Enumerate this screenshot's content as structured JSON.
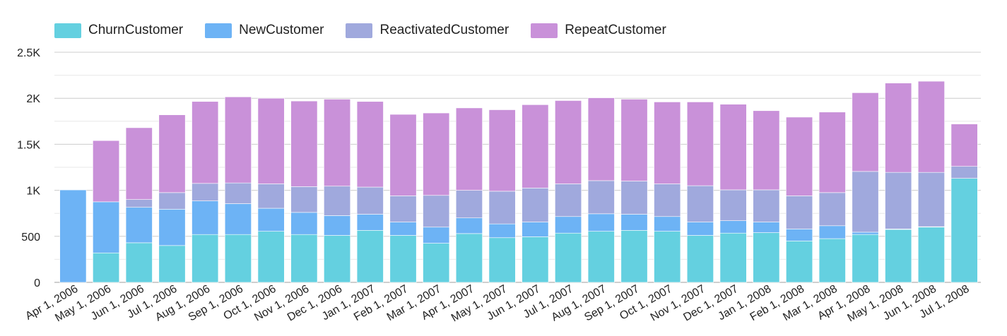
{
  "chart_data": {
    "type": "bar",
    "stacked": true,
    "title": "",
    "xlabel": "",
    "ylabel": "",
    "ylim": [
      0,
      2500
    ],
    "yticks": [
      0,
      500,
      1000,
      1500,
      2000,
      2500
    ],
    "ytick_labels": [
      "0",
      "500",
      "1K",
      "1.5K",
      "2K",
      "2.5K"
    ],
    "grid": true,
    "legend_position": "top-left",
    "categories": [
      "Apr 1, 2006",
      "May 1, 2006",
      "Jun 1, 2006",
      "Jul 1, 2006",
      "Aug 1, 2006",
      "Sep 1, 2006",
      "Oct 1, 2006",
      "Nov 1, 2006",
      "Dec 1, 2006",
      "Jan 1, 2007",
      "Feb 1, 2007",
      "Mar 1, 2007",
      "Apr 1, 2007",
      "May 1, 2007",
      "Jun 1, 2007",
      "Jul 1, 2007",
      "Aug 1, 2007",
      "Sep 1, 2007",
      "Oct 1, 2007",
      "Nov 1, 2007",
      "Dec 1, 2007",
      "Jan 1, 2008",
      "Feb 1, 2008",
      "Mar 1, 2008",
      "Apr 1, 2008",
      "May 1, 2008",
      "Jun 1, 2008",
      "Jul 1, 2008"
    ],
    "series": [
      {
        "name": "ChurnCustomer",
        "color": "#64d0e0",
        "values": [
          0,
          320,
          430,
          400,
          520,
          520,
          555,
          520,
          510,
          565,
          510,
          425,
          530,
          485,
          495,
          535,
          555,
          565,
          555,
          510,
          535,
          540,
          450,
          475,
          520,
          575,
          600,
          1130
        ]
      },
      {
        "name": "NewCustomer",
        "color": "#6db3f5",
        "values": [
          1005,
          555,
          385,
          395,
          365,
          335,
          250,
          240,
          215,
          175,
          145,
          175,
          170,
          150,
          160,
          180,
          190,
          175,
          160,
          145,
          135,
          115,
          130,
          140,
          25,
          5,
          5,
          0
        ]
      },
      {
        "name": "ReactivatedCustomer",
        "color": "#a0a9dd",
        "values": [
          5,
          0,
          85,
          180,
          190,
          225,
          265,
          280,
          320,
          295,
          285,
          345,
          300,
          355,
          370,
          355,
          360,
          360,
          355,
          395,
          335,
          350,
          360,
          360,
          660,
          615,
          590,
          130
        ]
      },
      {
        "name": "RepeatCustomer",
        "color": "#c991d9",
        "values": [
          0,
          665,
          780,
          845,
          890,
          935,
          930,
          930,
          945,
          930,
          885,
          895,
          895,
          885,
          905,
          905,
          900,
          890,
          890,
          910,
          930,
          860,
          855,
          875,
          855,
          970,
          990,
          460
        ]
      }
    ]
  }
}
